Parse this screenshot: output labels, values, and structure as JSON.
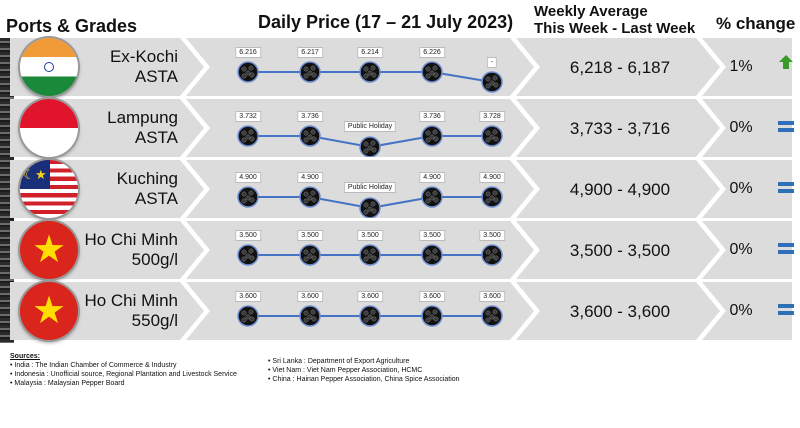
{
  "headers": {
    "ports": "Ports & Grades",
    "daily": "Daily Price (17 – 21 July 2023)",
    "weekly_line1": "Weekly Average",
    "weekly_line2": "This Week - Last Week",
    "change": "% change"
  },
  "rows": [
    {
      "port_line1": "Ex-Kochi",
      "port_line2": "ASTA",
      "flag": "india-flag",
      "prices": [
        "6.216",
        "6.217",
        "6.214",
        "6.226",
        "-"
      ],
      "weekly": "6,218 - 6,187",
      "change": "1%",
      "trend": "up-arrow-icon"
    },
    {
      "port_line1": "Lampung",
      "port_line2": "ASTA",
      "flag": "indonesia-flag",
      "prices": [
        "3.732",
        "3.736",
        "Public Holiday",
        "3.736",
        "3.728"
      ],
      "weekly": "3,733 - 3,716",
      "change": "0%",
      "trend": "equal-icon"
    },
    {
      "port_line1": "Kuching",
      "port_line2": "ASTA",
      "flag": "malaysia-flag",
      "prices": [
        "4.900",
        "4.900",
        "Public Holiday",
        "4.900",
        "4.900"
      ],
      "weekly": "4,900 - 4,900",
      "change": "0%",
      "trend": "equal-icon"
    },
    {
      "port_line1": "Ho Chi Minh",
      "port_line2": "500g/l",
      "flag": "vietnam-flag",
      "prices": [
        "3.500",
        "3.500",
        "3.500",
        "3.500",
        "3.500"
      ],
      "weekly": "3,500 - 3,500",
      "change": "0%",
      "trend": "equal-icon"
    },
    {
      "port_line1": "Ho Chi Minh",
      "port_line2": "550g/l",
      "flag": "vietnam-flag",
      "prices": [
        "3.600",
        "3.600",
        "3.600",
        "3.600",
        "3.600"
      ],
      "weekly": "3,600 - 3,600",
      "change": "0%",
      "trend": "equal-icon"
    }
  ],
  "sources": {
    "title": "Sources:",
    "left": [
      "India : The Indian Chamber of Commerce & Industry",
      "Indonesia : Unofficial source, Regional Plantation and Livestock Service",
      "Malaysia : Malaysian Pepper Board"
    ],
    "right": [
      "Sri Lanka : Department of Export Agriculture",
      "Viet Nam : Viet Nam Pepper Association, HCMC",
      "China : Hainan Pepper Association, China Spice Association"
    ]
  },
  "colors": {
    "row_bg": "#dcdcdc",
    "line": "#4472c4",
    "up_arrow": "#3a9a2a",
    "equal": "#2e6fb7"
  }
}
